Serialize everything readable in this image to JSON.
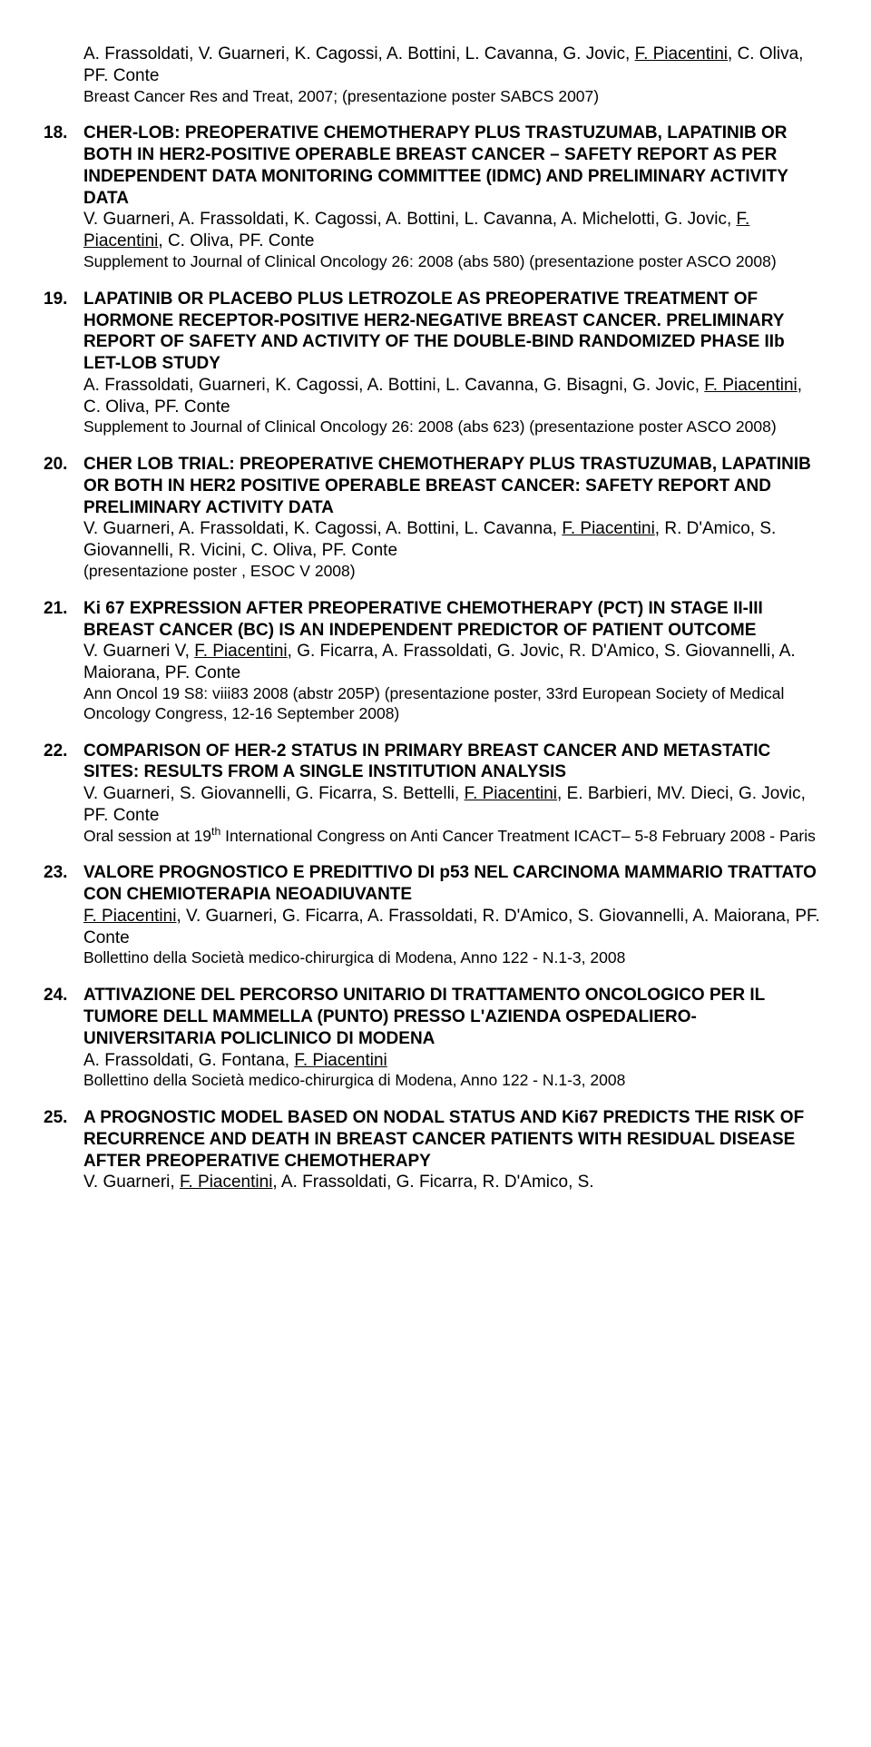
{
  "intro": {
    "authors_html": "A. Frassoldati, V. Guarneri, K. Cagossi, A. Bottini, L. Cavanna, G. Jovic, <span class='u'>F. Piacentini</span>, C. Oliva, PF. Conte",
    "note": "Breast Cancer Res and Treat, 2007; (presentazione poster SABCS 2007)"
  },
  "items": [
    {
      "num": "18.",
      "title": "CHER-LOB: PREOPERATIVE CHEMOTHERAPY PLUS TRASTUZUMAB, LAPATINIB OR BOTH IN HER2-POSITIVE OPERABLE BREAST CANCER – SAFETY REPORT AS PER INDEPENDENT DATA MONITORING COMMITTEE (IDMC) AND PRELIMINARY ACTIVITY DATA",
      "authors_html": "V. Guarneri, A. Frassoldati, K. Cagossi, A. Bottini, L. Cavanna, A. Michelotti, G. Jovic, <span class='u'>F. Piacentini</span>, C. Oliva, PF. Conte",
      "note": "Supplement to Journal of Clinical Oncology  26: 2008 (abs 580) (presentazione poster ASCO 2008)"
    },
    {
      "num": "19.",
      "title": "LAPATINIB OR PLACEBO PLUS LETROZOLE AS PREOPERATIVE TREATMENT OF HORMONE RECEPTOR-POSITIVE HER2-NEGATIVE BREAST CANCER. PRELIMINARY REPORT OF SAFETY AND ACTIVITY OF THE DOUBLE-BIND RANDOMIZED PHASE IIb LET-LOB STUDY",
      "authors_html": "A. Frassoldati, Guarneri, K. Cagossi, A. Bottini, L. Cavanna, G. Bisagni, G. Jovic, <span class='u'>F. Piacentini</span>, C. Oliva, PF. Conte",
      "note": "Supplement to Journal of Clinical Oncology  26: 2008 (abs 623) (presentazione poster ASCO 2008)"
    },
    {
      "num": "20.",
      "title": "CHER LOB TRIAL: PREOPERATIVE CHEMOTHERAPY PLUS TRASTUZUMAB, LAPATINIB OR BOTH IN HER2 POSITIVE OPERABLE BREAST CANCER: SAFETY REPORT AND PRELIMINARY ACTIVITY DATA",
      "authors_html": "V. Guarneri, A. Frassoldati, K. Cagossi, A. Bottini, L. Cavanna, <span class='u'>F. Piacentini</span>, R. D'Amico, S. Giovannelli, R. Vicini, C. Oliva, PF. Conte",
      "note": "(presentazione poster , ESOC V 2008)"
    },
    {
      "num": "21.",
      "title": "Ki 67 EXPRESSION AFTER PREOPERATIVE CHEMOTHERAPY (PCT) IN STAGE II-III BREAST CANCER (BC) IS AN INDEPENDENT PREDICTOR OF PATIENT OUTCOME",
      "authors_html": "V. Guarneri V, <span class='u'>F. Piacentini</span>, G. Ficarra, A. Frassoldati, G. Jovic, R. D'Amico, S. Giovannelli, A. Maiorana, PF. Conte",
      "note": "Ann Oncol  19 S8: viii83 2008 (abstr 205P) (presentazione poster, 33rd European Society of Medical Oncology Congress,  12-16 September 2008)"
    },
    {
      "num": "22.",
      "title": "COMPARISON OF HER-2 STATUS IN PRIMARY BREAST CANCER AND METASTATIC SITES: RESULTS FROM A SINGLE INSTITUTION ANALYSIS",
      "authors_html": "V. Guarneri, S. Giovannelli, G. Ficarra, S. Bettelli, <span class='u'>F. Piacentini</span>, E. Barbieri, MV. Dieci, G. Jovic, PF. Conte",
      "note_html": "Oral session at 19<sup>th</sup> International Congress on Anti Cancer Treatment  ICACT– 5-8 February 2008 - Paris"
    },
    {
      "num": "23.",
      "title": "VALORE PROGNOSTICO E PREDITTIVO DI p53 NEL CARCINOMA MAMMARIO TRATTATO CON CHEMIOTERAPIA NEOADIUVANTE",
      "authors_html": "<span class='u'>F. Piacentini</span>, V. Guarneri, G. Ficarra, A. Frassoldati, R. D'Amico, S. Giovannelli, A. Maiorana, PF. Conte",
      "note": "Bollettino della Società medico-chirurgica di Modena, Anno 122 - N.1-3, 2008"
    },
    {
      "num": "24.",
      "title": "ATTIVAZIONE DEL PERCORSO UNITARIO DI TRATTAMENTO ONCOLOGICO PER IL TUMORE DELL MAMMELLA (PUNTO) PRESSO L'AZIENDA OSPEDALIERO-UNIVERSITARIA POLICLINICO DI MODENA",
      "authors_html": "A. Frassoldati, G. Fontana, <span class='u'>F. Piacentini</span>",
      "note": "Bollettino della Società medico-chirurgica di Modena, Anno 122 - N.1-3, 2008"
    },
    {
      "num": "25.",
      "title": "A PROGNOSTIC MODEL BASED ON NODAL STATUS AND Ki67 PREDICTS THE RISK OF RECURRENCE AND DEATH IN BREAST CANCER PATIENTS WITH RESIDUAL DISEASE AFTER PREOPERATIVE CHEMOTHERAPY",
      "authors_html": "V. Guarneri, <span class='u'>F. Piacentini</span>, A. Frassoldati, G. Ficarra, R. D'Amico, S.",
      "note": ""
    }
  ]
}
